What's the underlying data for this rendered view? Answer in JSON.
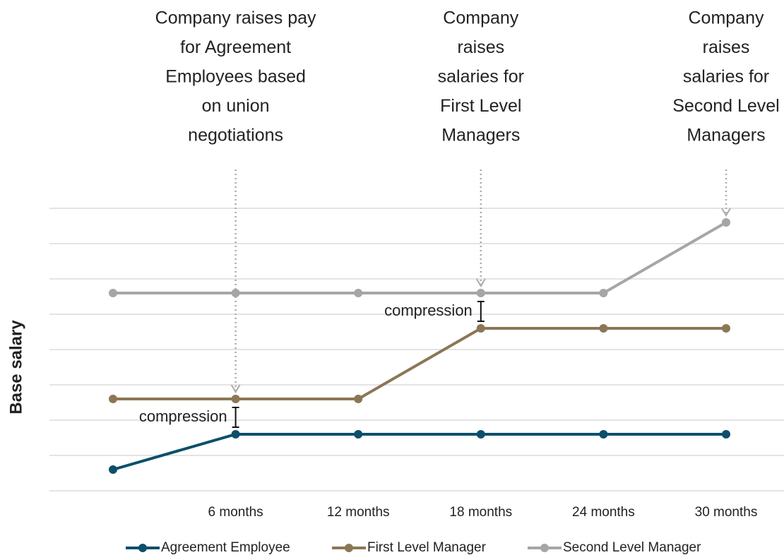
{
  "chart_data": {
    "type": "line",
    "categories": [
      null,
      "6 months",
      "12 months",
      "18 months",
      "24 months",
      "30 months"
    ],
    "series": [
      {
        "name": "Agreement Employee",
        "color": "#0d4f6b",
        "values": [
          0.6,
          1.6,
          1.6,
          1.6,
          1.6,
          1.6
        ]
      },
      {
        "name": "First Level Manager",
        "color": "#8b7755",
        "values": [
          2.6,
          2.6,
          2.6,
          4.6,
          4.6,
          4.6
        ]
      },
      {
        "name": "Second Level Manager",
        "color": "#a6a6a6",
        "values": [
          5.6,
          5.6,
          5.6,
          5.6,
          5.6,
          7.6
        ]
      }
    ],
    "ylabel": "Base salary",
    "ylim": [
      0,
      8
    ],
    "yticks": [
      0,
      1,
      2,
      3,
      4,
      5,
      6,
      7,
      8
    ],
    "grid": true,
    "annotations": [
      [
        "Company raises pay",
        "for Agreement",
        "Employees based",
        "on union",
        "negotiations"
      ],
      [
        "Company",
        "raises",
        "salaries for",
        "First Level",
        "Managers"
      ],
      [
        "Company",
        "raises",
        "salaries for",
        "Second Level",
        "Managers"
      ]
    ],
    "compression_labels": [
      "compression",
      "compression"
    ],
    "legend": "bottom"
  }
}
